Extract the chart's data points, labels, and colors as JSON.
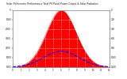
{
  "title": "Solar PV/Inverter Performance Total PV Panel Power Output & Solar Radiation",
  "bg_color": "#ffffff",
  "plot_bg_color": "#ffffff",
  "grid_color": "#aaaaaa",
  "bar_color": "#ff0000",
  "line_color": "#0000ff",
  "num_points": 144,
  "peak_index": 72,
  "pv_sigma": 22,
  "radiation_amplitude": 0.28,
  "radiation_sigma": 26,
  "ylim": [
    0,
    1.0
  ],
  "ylabel_right_labels": [
    "1200",
    "1000",
    "800",
    "600",
    "400",
    "200",
    "0"
  ],
  "ylabel_left_labels": [
    "6000",
    "5000",
    "4000",
    "3000",
    "2000",
    "1000",
    "0"
  ],
  "num_xticks": 13
}
